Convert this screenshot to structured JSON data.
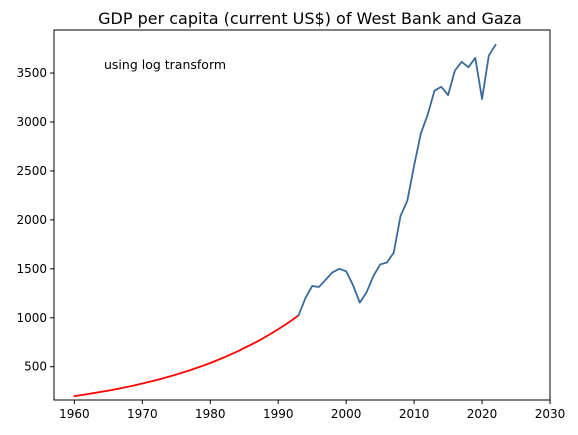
{
  "chart_data": {
    "type": "line",
    "title": "GDP per capita (current US$) of West Bank and Gaza",
    "annotation": "using log transform",
    "xlabel": "",
    "ylabel": "",
    "xlim": [
      1957,
      2030
    ],
    "ylim": [
      160,
      3940
    ],
    "xticks": [
      1960,
      1970,
      1980,
      1990,
      2000,
      2010,
      2020,
      2030
    ],
    "yticks": [
      500,
      1000,
      1500,
      2000,
      2500,
      3000,
      3500
    ],
    "grid": false,
    "series": [
      {
        "color": "#ff0000",
        "style": "extrapolated",
        "x": [
          1960,
          1961,
          1962,
          1963,
          1964,
          1965,
          1966,
          1967,
          1968,
          1969,
          1970,
          1971,
          1972,
          1973,
          1974,
          1975,
          1976,
          1977,
          1978,
          1979,
          1980,
          1981,
          1982,
          1983,
          1984,
          1985,
          1986,
          1987,
          1988,
          1989,
          1990,
          1991,
          1992,
          1993
        ],
        "y": [
          200,
          210,
          221,
          232,
          244,
          256,
          269,
          283,
          297,
          312,
          328,
          345,
          362,
          381,
          400,
          420,
          442,
          464,
          488,
          512,
          538,
          566,
          594,
          625,
          656,
          690,
          725,
          761,
          800,
          841,
          883,
          928,
          975,
          1025
        ]
      },
      {
        "color": "#3a6a99",
        "style": "observed",
        "x": [
          1993,
          1994,
          1995,
          1996,
          1997,
          1998,
          1999,
          2000,
          2001,
          2002,
          2003,
          2004,
          2005,
          2006,
          2007,
          2008,
          2009,
          2010,
          2011,
          2012,
          2013,
          2014,
          2015,
          2016,
          2017,
          2018,
          2019,
          2020,
          2021,
          2022
        ],
        "y": [
          1025,
          1200,
          1325,
          1315,
          1390,
          1465,
          1500,
          1475,
          1335,
          1155,
          1260,
          1425,
          1545,
          1565,
          1665,
          2040,
          2195,
          2555,
          2885,
          3075,
          3320,
          3360,
          3275,
          3525,
          3615,
          3560,
          3655,
          3235,
          3680,
          3790
        ]
      }
    ]
  }
}
